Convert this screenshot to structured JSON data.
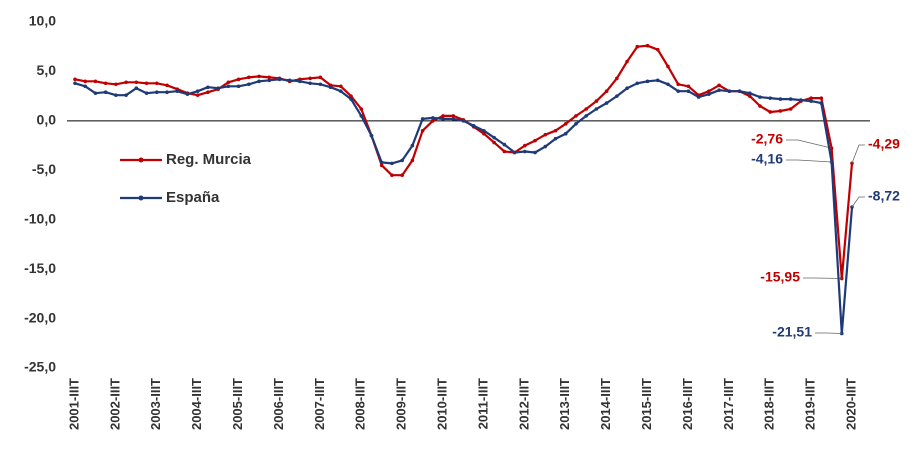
{
  "chart_data": {
    "type": "line",
    "categories": [
      "2001-IIIT",
      null,
      null,
      null,
      "2002-IIIT",
      null,
      null,
      null,
      "2003-IIIT",
      null,
      null,
      null,
      "2004-IIIT",
      null,
      null,
      null,
      "2005-IIIT",
      null,
      null,
      null,
      "2006-IIIT",
      null,
      null,
      null,
      "2007-IIIT",
      null,
      null,
      null,
      "2008-IIIT",
      null,
      null,
      null,
      "2009-IIIT",
      null,
      null,
      null,
      "2010-IIIT",
      null,
      null,
      null,
      "2011-IIIT",
      null,
      null,
      null,
      "2012-IIIT",
      null,
      null,
      null,
      "2013-IIIT",
      null,
      null,
      null,
      "2014-IIIT",
      null,
      null,
      null,
      "2015-IIIT",
      null,
      null,
      null,
      "2016-IIIT",
      null,
      null,
      null,
      "2017-IIIT",
      null,
      null,
      null,
      "2018-IIIT",
      null,
      null,
      null,
      "2019-IIIT",
      null,
      null,
      null,
      "2020-IIIT"
    ],
    "series": [
      {
        "name": "Reg. Murcia",
        "color": "#c00000",
        "values": [
          4.2,
          4.0,
          4.0,
          3.8,
          3.7,
          3.9,
          3.9,
          3.8,
          3.8,
          3.6,
          3.2,
          2.8,
          2.6,
          2.9,
          3.2,
          3.9,
          4.2,
          4.4,
          4.5,
          4.4,
          4.3,
          4.0,
          4.2,
          4.3,
          4.4,
          3.6,
          3.5,
          2.5,
          1.2,
          -1.5,
          -4.5,
          -5.5,
          -5.5,
          -4.0,
          -1.0,
          0.0,
          0.5,
          0.5,
          0.1,
          -0.6,
          -1.3,
          -2.2,
          -3.1,
          -3.2,
          -2.5,
          -2.0,
          -1.4,
          -1.0,
          -0.3,
          0.5,
          1.2,
          2.0,
          3.0,
          4.3,
          6.0,
          7.5,
          7.6,
          7.2,
          5.5,
          3.7,
          3.5,
          2.6,
          3.0,
          3.6,
          3.0,
          3.0,
          2.5,
          1.5,
          0.9,
          1.0,
          1.2,
          2.0,
          2.3,
          2.3,
          -2.76,
          -15.95,
          -4.29
        ],
        "value_labels": [
          null,
          null,
          null,
          null,
          null,
          null,
          null,
          null,
          null,
          null,
          null,
          null,
          null,
          null,
          null,
          null,
          null,
          null,
          null,
          null,
          null,
          null,
          null,
          null,
          null,
          null,
          null,
          null,
          null,
          null,
          null,
          null,
          null,
          null,
          null,
          null,
          null,
          null,
          null,
          null,
          null,
          null,
          null,
          null,
          null,
          null,
          null,
          null,
          null,
          null,
          null,
          null,
          null,
          null,
          null,
          null,
          null,
          null,
          null,
          null,
          null,
          null,
          null,
          null,
          null,
          null,
          null,
          null,
          null,
          null,
          null,
          null,
          null,
          null,
          "-2,76",
          "-15,95",
          "-4,29"
        ]
      },
      {
        "name": "España",
        "color": "#1f3a78",
        "values": [
          3.8,
          3.5,
          2.8,
          2.9,
          2.6,
          2.6,
          3.3,
          2.8,
          2.9,
          2.9,
          3.0,
          2.7,
          3.0,
          3.4,
          3.3,
          3.5,
          3.5,
          3.7,
          4.0,
          4.1,
          4.2,
          4.1,
          4.0,
          3.8,
          3.7,
          3.4,
          3.0,
          2.2,
          0.5,
          -1.5,
          -4.2,
          -4.3,
          -4.0,
          -2.5,
          0.2,
          0.3,
          0.2,
          0.2,
          0.0,
          -0.5,
          -1.0,
          -1.7,
          -2.4,
          -3.2,
          -3.1,
          -3.2,
          -2.6,
          -1.8,
          -1.3,
          -0.3,
          0.5,
          1.2,
          1.8,
          2.5,
          3.3,
          3.8,
          4.0,
          4.1,
          3.7,
          3.0,
          3.0,
          2.4,
          2.7,
          3.1,
          3.0,
          3.0,
          2.8,
          2.4,
          2.3,
          2.2,
          2.2,
          2.1,
          2.0,
          1.8,
          -4.16,
          -21.51,
          -8.72
        ],
        "value_labels": [
          null,
          null,
          null,
          null,
          null,
          null,
          null,
          null,
          null,
          null,
          null,
          null,
          null,
          null,
          null,
          null,
          null,
          null,
          null,
          null,
          null,
          null,
          null,
          null,
          null,
          null,
          null,
          null,
          null,
          null,
          null,
          null,
          null,
          null,
          null,
          null,
          null,
          null,
          null,
          null,
          null,
          null,
          null,
          null,
          null,
          null,
          null,
          null,
          null,
          null,
          null,
          null,
          null,
          null,
          null,
          null,
          null,
          null,
          null,
          null,
          null,
          null,
          null,
          null,
          null,
          null,
          null,
          null,
          null,
          null,
          null,
          null,
          null,
          null,
          "-4,16",
          "-21,51",
          "-8,72"
        ]
      }
    ],
    "ylim": [
      -25,
      10
    ],
    "yticks": [
      {
        "value": 10,
        "label": "10,0"
      },
      {
        "value": 5,
        "label": "5,0"
      },
      {
        "value": 0,
        "label": "0,0"
      },
      {
        "value": -5,
        "label": "-5,0"
      },
      {
        "value": -10,
        "label": "-10,0"
      },
      {
        "value": -15,
        "label": "-15,0"
      },
      {
        "value": -20,
        "label": "-20,0"
      },
      {
        "value": -25,
        "label": "-25,0"
      }
    ],
    "zero_line": true,
    "grid": false,
    "legend": "left"
  }
}
